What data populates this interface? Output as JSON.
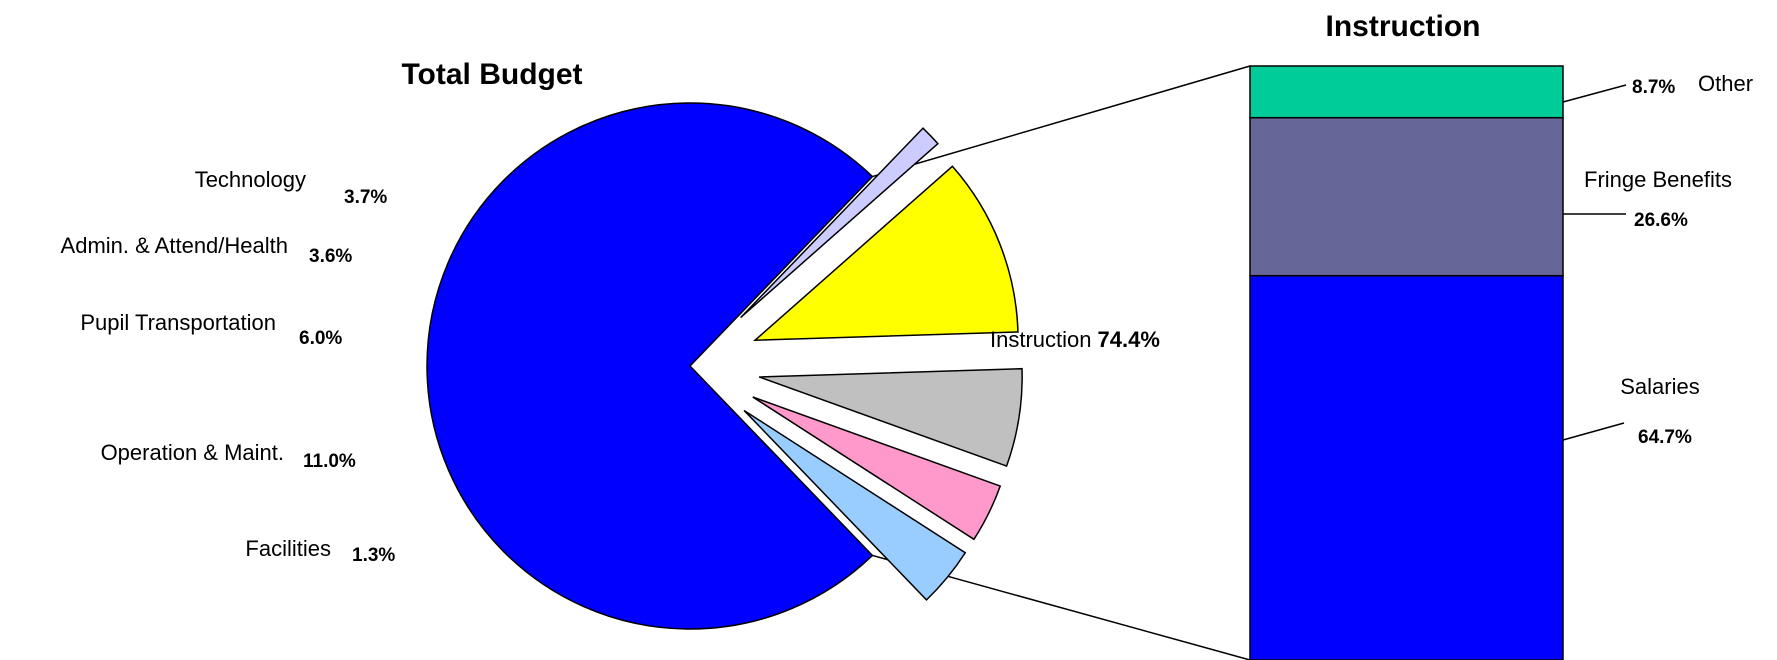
{
  "chart_data": [
    {
      "type": "pie",
      "title": "Total Budget",
      "slices": [
        {
          "label": "Instruction",
          "value": 74.4,
          "value_label": "74.4%",
          "color": "#0000ff",
          "exploded": false
        },
        {
          "label": "Facilities",
          "value": 1.3,
          "value_label": "1.3%",
          "color": "#ccccff",
          "exploded": true
        },
        {
          "label": "Operation & Maint.",
          "value": 11.0,
          "value_label": "11.0%",
          "color": "#ffff00",
          "exploded": true
        },
        {
          "label": "Pupil Transportation",
          "value": 6.0,
          "value_label": "6.0%",
          "color": "#c0c0c0",
          "exploded": true
        },
        {
          "label": "Admin. & Attend/Health",
          "value": 3.6,
          "value_label": "3.6%",
          "color": "#ff99cc",
          "exploded": true
        },
        {
          "label": "Technology",
          "value": 3.7,
          "value_label": "3.7%",
          "color": "#99ccff",
          "exploded": true
        }
      ]
    },
    {
      "type": "bar",
      "stacked": true,
      "title": "Instruction",
      "series": [
        {
          "name": "Salaries",
          "value": 64.7,
          "value_label": "64.7%",
          "color": "#0000ff"
        },
        {
          "name": "Fringe Benefits",
          "value": 26.6,
          "value_label": "26.6%",
          "color": "#666699"
        },
        {
          "name": "Other",
          "value": 8.7,
          "value_label": "8.7%",
          "color": "#00cc99"
        }
      ]
    }
  ]
}
